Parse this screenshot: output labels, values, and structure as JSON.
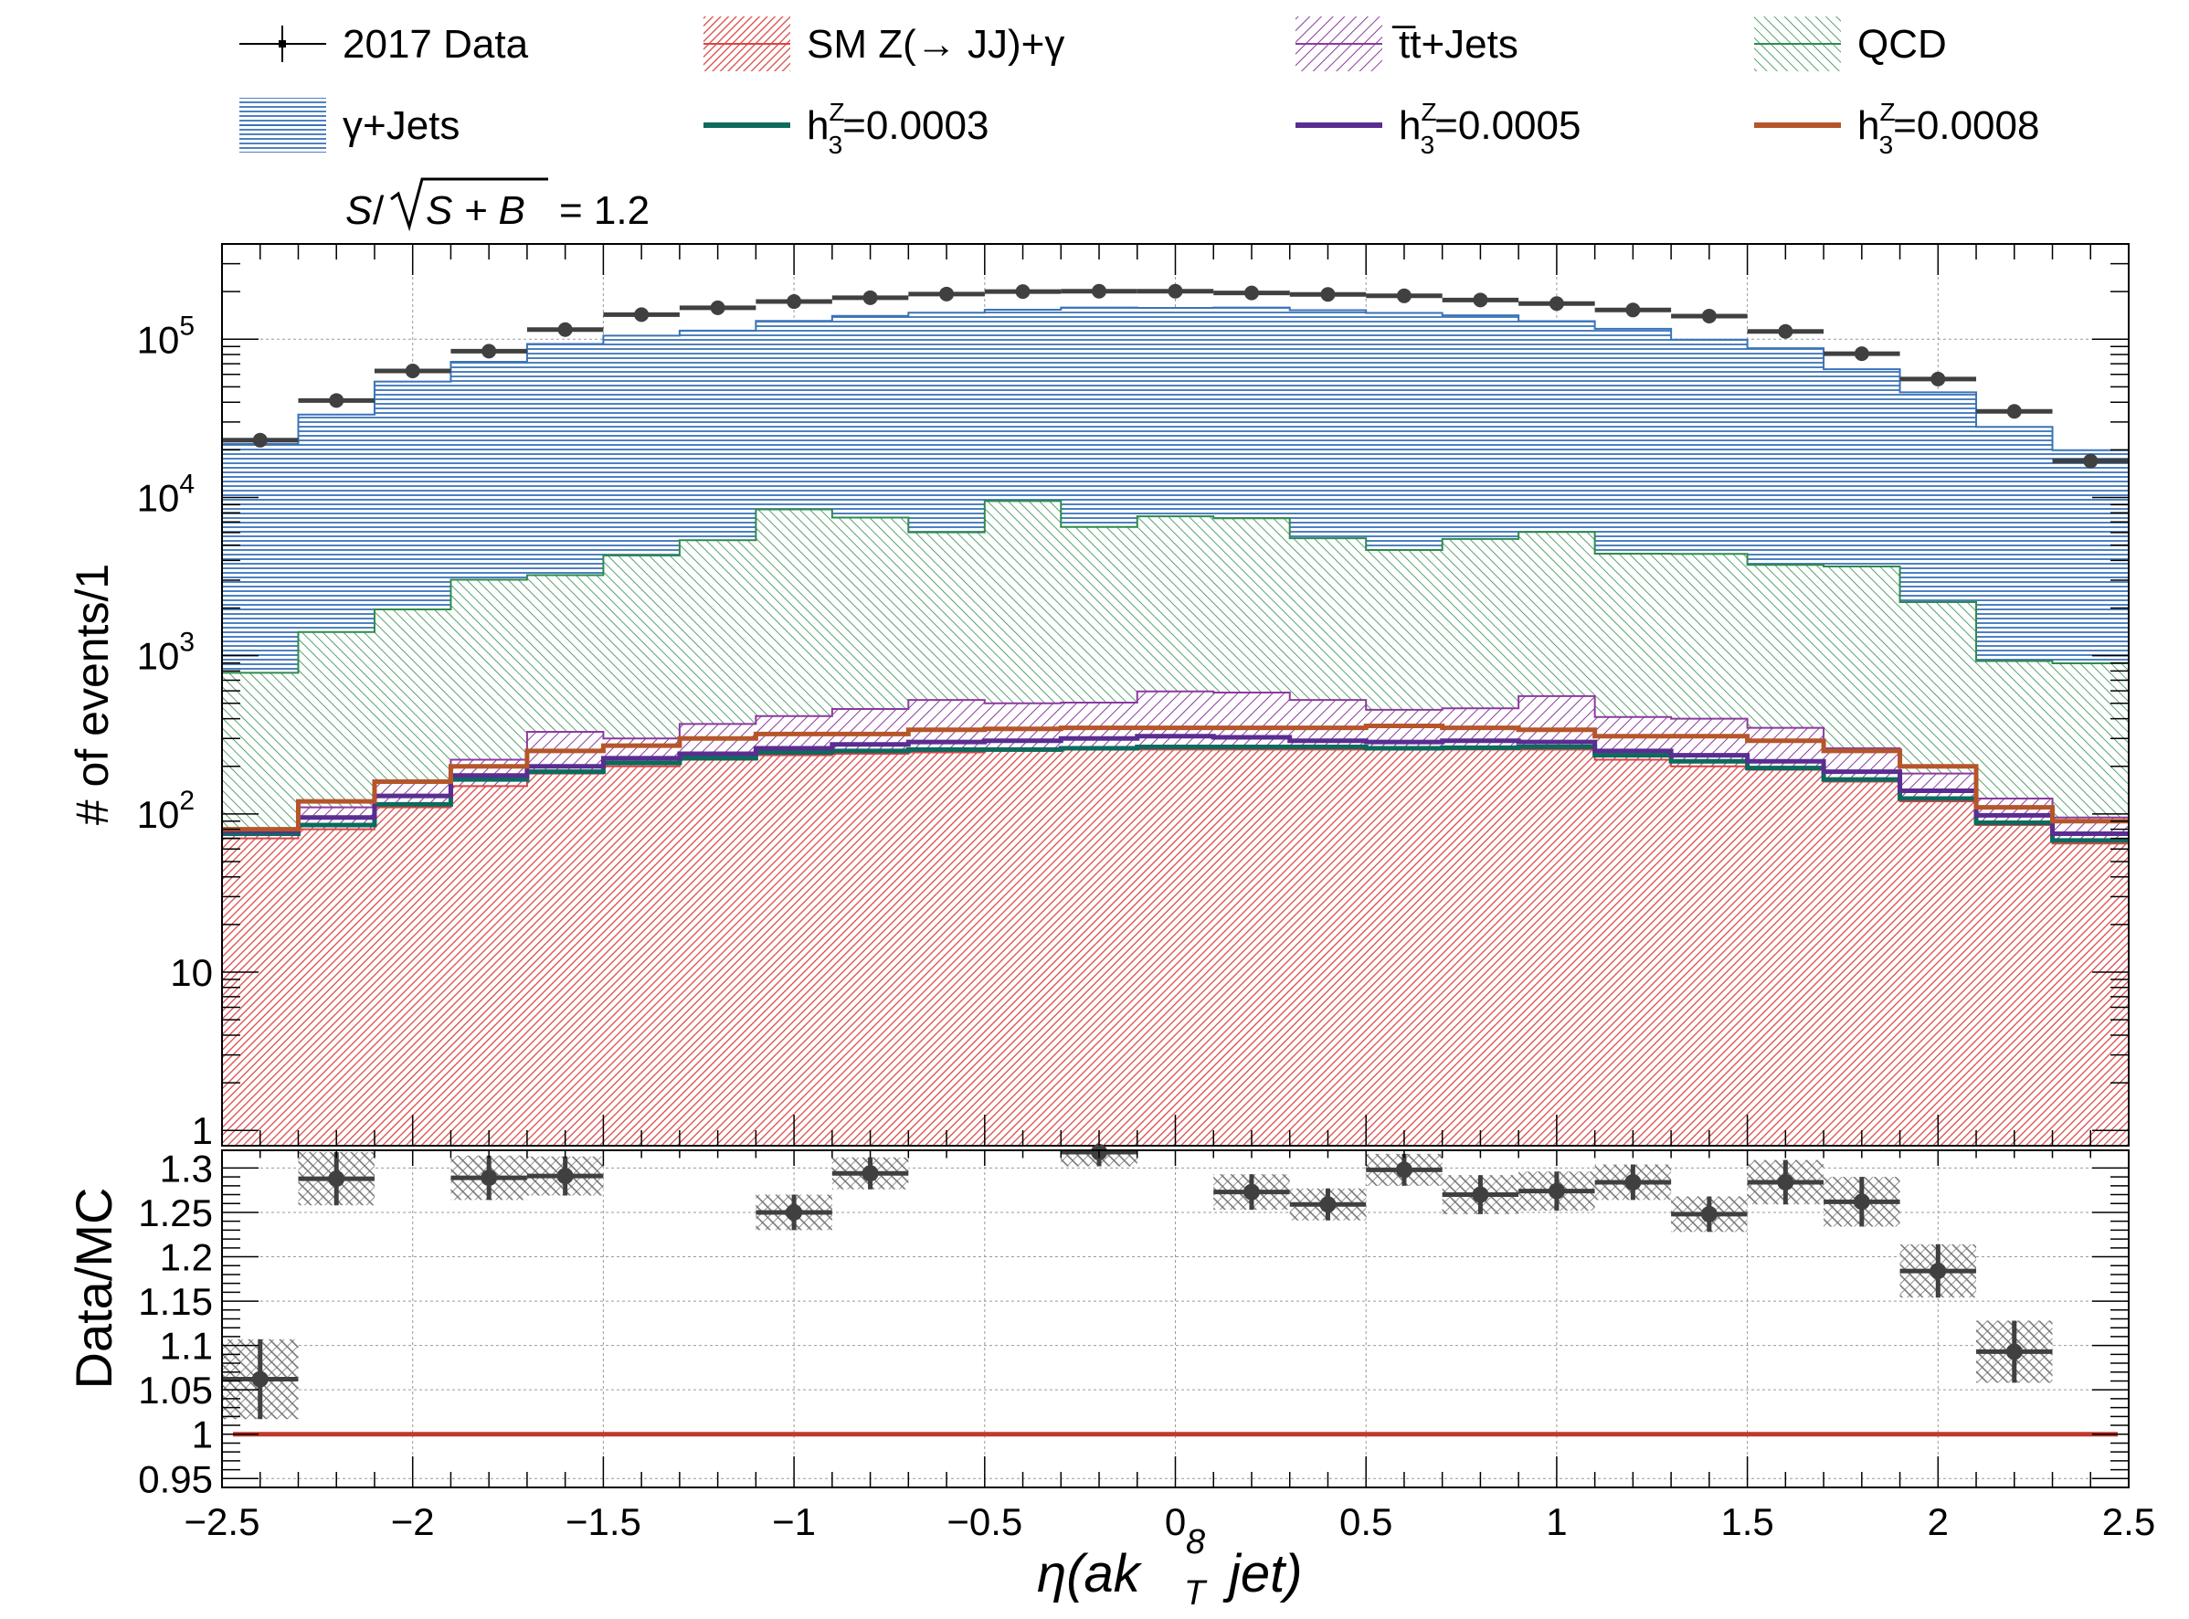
{
  "legend": {
    "items": [
      {
        "label": "2017 Data",
        "kind": "data",
        "color": "#404040"
      },
      {
        "label": "SM Z(→ JJ)+γ",
        "kind": "fill",
        "color": "#d94444",
        "pattern": "hatch-red"
      },
      {
        "label": "t̅t+Jets",
        "kind": "fill",
        "color": "#8b3a9e",
        "pattern": "hatch-purple"
      },
      {
        "label": "QCD",
        "kind": "fill",
        "color": "#2e8b4e",
        "pattern": "hatch-green"
      },
      {
        "label": "γ+Jets",
        "kind": "fill",
        "color": "#3a73b8",
        "pattern": "hatch-blue"
      },
      {
        "label": "h",
        "sup": "Z",
        "sub": "3",
        "value_text": "=0.0003",
        "kind": "line",
        "color": "#0b6b5d"
      },
      {
        "label": "h",
        "sup": "Z",
        "sub": "3",
        "value_text": "=0.0005",
        "kind": "line",
        "color": "#5a2d91"
      },
      {
        "label": "h",
        "sup": "Z",
        "sub": "3",
        "value_text": "=0.0008",
        "kind": "line",
        "color": "#b5562a"
      }
    ],
    "significance": {
      "lhs_S": "S",
      "rhs": "= 1.2"
    }
  },
  "chart_data": [
    {
      "type": "bar",
      "stacked": true,
      "log_scale": true,
      "ylabel": "# of events/1",
      "xlim": [
        -2.5,
        2.5
      ],
      "ylim": [
        0.8,
        400000
      ],
      "y_ticks": [
        {
          "value": 1,
          "label": "1"
        },
        {
          "value": 10,
          "label": "10"
        },
        {
          "value": 100,
          "base": "10",
          "exp": "2"
        },
        {
          "value": 1000,
          "base": "10",
          "exp": "3"
        },
        {
          "value": 10000,
          "base": "10",
          "exp": "4"
        },
        {
          "value": 100000,
          "base": "10",
          "exp": "5"
        }
      ],
      "grid": true,
      "bin_edges": [
        -2.5,
        -2.3,
        -2.1,
        -1.9,
        -1.7,
        -1.5,
        -1.3,
        -1.1,
        -0.9,
        -0.7,
        -0.5,
        -0.3,
        -0.1,
        0.1,
        0.3,
        0.5,
        0.7,
        0.9,
        1.1,
        1.3,
        1.5,
        1.7,
        1.9,
        2.1,
        2.3,
        2.5
      ],
      "series": [
        {
          "name": "SM Z(→ JJ)+γ",
          "kind": "stack",
          "color": "#d94444",
          "pattern": "hatch-red",
          "values": [
            70,
            80,
            110,
            150,
            180,
            200,
            220,
            235,
            240,
            245,
            250,
            255,
            255,
            255,
            255,
            255,
            255,
            255,
            220,
            200,
            190,
            160,
            120,
            85,
            65
          ]
        },
        {
          "name": "t̅t+Jets",
          "kind": "stack",
          "color": "#8b3a9e",
          "pattern": "hatch-purple",
          "values": [
            10,
            30,
            50,
            70,
            150,
            100,
            150,
            180,
            220,
            280,
            250,
            250,
            340,
            330,
            270,
            200,
            210,
            300,
            190,
            200,
            160,
            100,
            60,
            40,
            30
          ]
        },
        {
          "name": "QCD",
          "kind": "stack",
          "color": "#2e8b4e",
          "pattern": "hatch-green",
          "values": [
            700,
            1300,
            1800,
            2800,
            2900,
            4000,
            5000,
            8000,
            7000,
            5500,
            9000,
            6000,
            7000,
            6800,
            5000,
            4200,
            5000,
            5500,
            4000,
            4000,
            3400,
            3400,
            2000,
            800,
            800
          ]
        },
        {
          "name": "γ+Jets",
          "kind": "stack",
          "color": "#3a73b8",
          "pattern": "hatch-blue",
          "values": [
            21000,
            32000,
            52000,
            69000,
            90000,
            101000,
            108000,
            122000,
            133000,
            141000,
            144000,
            152000,
            150000,
            151000,
            147000,
            142000,
            136000,
            124000,
            112000,
            95000,
            84000,
            61000,
            44000,
            27000,
            19000
          ]
        },
        {
          "name": "h3Z=0.0003",
          "kind": "line",
          "color": "#0b6b5d",
          "values": [
            75,
            85,
            115,
            165,
            185,
            210,
            225,
            245,
            250,
            255,
            255,
            260,
            265,
            265,
            265,
            260,
            262,
            265,
            235,
            215,
            195,
            165,
            125,
            88,
            68
          ]
        },
        {
          "name": "h3Z=0.0005",
          "kind": "line",
          "color": "#5a2d91",
          "values": [
            78,
            95,
            130,
            175,
            200,
            225,
            240,
            260,
            275,
            285,
            290,
            300,
            310,
            305,
            290,
            285,
            290,
            285,
            250,
            235,
            215,
            185,
            140,
            98,
            75
          ]
        },
        {
          "name": "h3Z=0.0008",
          "kind": "line",
          "color": "#b5562a",
          "values": [
            80,
            120,
            160,
            200,
            250,
            270,
            300,
            320,
            320,
            340,
            345,
            350,
            350,
            350,
            350,
            360,
            350,
            340,
            310,
            310,
            290,
            250,
            200,
            110,
            90
          ]
        },
        {
          "name": "2017 Data",
          "kind": "data",
          "color": "#404040",
          "values": [
            23000,
            41000,
            63000,
            84000,
            115000,
            143000,
            158000,
            173000,
            183000,
            193000,
            200000,
            201000,
            201000,
            196000,
            192000,
            188000,
            177000,
            168000,
            153000,
            140000,
            112000,
            81000,
            56000,
            35000,
            17000
          ]
        }
      ]
    },
    {
      "type": "scatter",
      "ylabel": "Data/MC",
      "xlabel": "η(ak",
      "xlabel_sup": "8",
      "xlabel_sub": "T",
      "xlabel_tail": "jet)",
      "xlim": [
        -2.5,
        2.5
      ],
      "ylim": [
        0.94,
        1.32
      ],
      "x_ticks": [
        "−2.5",
        "−2",
        "−1.5",
        "−1",
        "−0.5",
        "0",
        "0.5",
        "1",
        "1.5",
        "2",
        "2.5"
      ],
      "x_tick_values": [
        -2.5,
        -2,
        -1.5,
        -1,
        -0.5,
        0,
        0.5,
        1,
        1.5,
        2,
        2.5
      ],
      "y_ticks": [
        "0.95",
        "1",
        "1.05",
        "1.1",
        "1.15",
        "1.2",
        "1.25",
        "1.3"
      ],
      "y_tick_values": [
        0.95,
        1.0,
        1.05,
        1.1,
        1.15,
        1.2,
        1.25,
        1.3
      ],
      "reference_line": {
        "value": 1.0,
        "color": "#c0392b"
      },
      "grid": true,
      "points": [
        {
          "x": -2.4,
          "y": 1.062,
          "err": 0.045
        },
        {
          "x": -2.2,
          "y": 1.288,
          "err": 0.03
        },
        {
          "x": -1.8,
          "y": 1.289,
          "err": 0.025
        },
        {
          "x": -1.6,
          "y": 1.291,
          "err": 0.022
        },
        {
          "x": -1.0,
          "y": 1.25,
          "err": 0.02
        },
        {
          "x": -0.8,
          "y": 1.294,
          "err": 0.018
        },
        {
          "x": -0.2,
          "y": 1.318,
          "err": 0.016
        },
        {
          "x": 0.2,
          "y": 1.273,
          "err": 0.02
        },
        {
          "x": 0.4,
          "y": 1.259,
          "err": 0.018
        },
        {
          "x": 0.6,
          "y": 1.298,
          "err": 0.018
        },
        {
          "x": 0.8,
          "y": 1.27,
          "err": 0.022
        },
        {
          "x": 1.0,
          "y": 1.274,
          "err": 0.022
        },
        {
          "x": 1.2,
          "y": 1.284,
          "err": 0.02
        },
        {
          "x": 1.4,
          "y": 1.248,
          "err": 0.02
        },
        {
          "x": 1.6,
          "y": 1.284,
          "err": 0.025
        },
        {
          "x": 1.8,
          "y": 1.262,
          "err": 0.028
        },
        {
          "x": 2.0,
          "y": 1.184,
          "err": 0.03
        },
        {
          "x": 2.2,
          "y": 1.093,
          "err": 0.035
        }
      ]
    }
  ]
}
